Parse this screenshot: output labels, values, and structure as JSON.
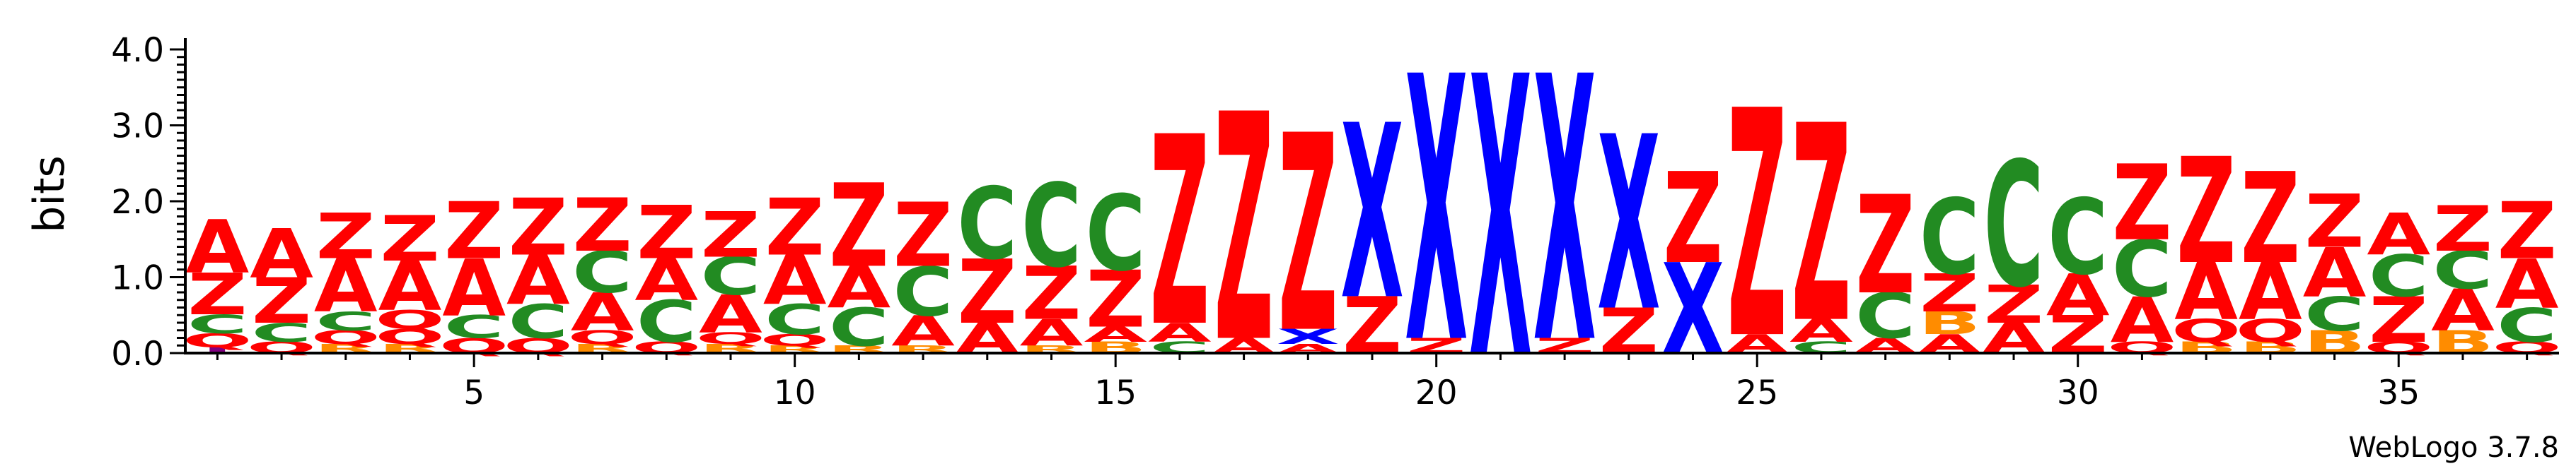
{
  "chart_data": {
    "type": "sequence-logo",
    "ylabel": "bits",
    "ylim": [
      0,
      4.0
    ],
    "yticks": [
      "0.0",
      "1.0",
      "2.0",
      "3.0",
      "4.0"
    ],
    "xlim": [
      0.5,
      37.5
    ],
    "xticks": [
      5,
      10,
      15,
      20,
      25,
      30,
      35
    ],
    "footer": "WebLogo 3.7.8",
    "colors": {
      "Z": "#ff0000",
      "A": "#ff0000",
      "C": "#228b22",
      "X": "#0000ff",
      "Q": "#ff0000",
      "B": "#ff8c00",
      "R": "#ff8c00",
      "I": "#800080"
    },
    "positions": [
      {
        "pos": 1,
        "stack": [
          [
            "I",
            0.08
          ],
          [
            "Q",
            0.18
          ],
          [
            "C",
            0.25
          ],
          [
            "Z",
            0.55
          ],
          [
            "A",
            0.7
          ]
        ]
      },
      {
        "pos": 2,
        "stack": [
          [
            "Q",
            0.15
          ],
          [
            "C",
            0.25
          ],
          [
            "Z",
            0.6
          ],
          [
            "A",
            0.65
          ]
        ]
      },
      {
        "pos": 3,
        "stack": [
          [
            "R",
            0.12
          ],
          [
            "Q",
            0.18
          ],
          [
            "C",
            0.25
          ],
          [
            "A",
            0.7
          ],
          [
            "Z",
            0.6
          ]
        ]
      },
      {
        "pos": 4,
        "stack": [
          [
            "R",
            0.12
          ],
          [
            "Q",
            0.2
          ],
          [
            "Q",
            0.25
          ],
          [
            "A",
            0.65
          ],
          [
            "Z",
            0.6
          ]
        ]
      },
      {
        "pos": 5,
        "stack": [
          [
            "Q",
            0.2
          ],
          [
            "C",
            0.3
          ],
          [
            "A",
            0.75
          ],
          [
            "Z",
            0.75
          ]
        ]
      },
      {
        "pos": 6,
        "stack": [
          [
            "Q",
            0.2
          ],
          [
            "C",
            0.45
          ],
          [
            "A",
            0.65
          ],
          [
            "Z",
            0.75
          ]
        ]
      },
      {
        "pos": 7,
        "stack": [
          [
            "R",
            0.12
          ],
          [
            "Q",
            0.18
          ],
          [
            "A",
            0.5
          ],
          [
            "C",
            0.55
          ],
          [
            "Z",
            0.7
          ]
        ]
      },
      {
        "pos": 8,
        "stack": [
          [
            "Q",
            0.15
          ],
          [
            "C",
            0.55
          ],
          [
            "A",
            0.55
          ],
          [
            "Z",
            0.7
          ]
        ]
      },
      {
        "pos": 9,
        "stack": [
          [
            "R",
            0.12
          ],
          [
            "Q",
            0.15
          ],
          [
            "A",
            0.5
          ],
          [
            "C",
            0.5
          ],
          [
            "Z",
            0.6
          ]
        ]
      },
      {
        "pos": 10,
        "stack": [
          [
            "R",
            0.1
          ],
          [
            "Q",
            0.15
          ],
          [
            "C",
            0.4
          ],
          [
            "A",
            0.65
          ],
          [
            "Z",
            0.75
          ]
        ]
      },
      {
        "pos": 11,
        "stack": [
          [
            "R",
            0.1
          ],
          [
            "C",
            0.5
          ],
          [
            "A",
            0.55
          ],
          [
            "Z",
            1.1
          ]
        ]
      },
      {
        "pos": 12,
        "stack": [
          [
            "R",
            0.1
          ],
          [
            "A",
            0.4
          ],
          [
            "C",
            0.65
          ],
          [
            "Z",
            0.85
          ]
        ]
      },
      {
        "pos": 13,
        "stack": [
          [
            "A",
            0.4
          ],
          [
            "Z",
            0.85
          ],
          [
            "C",
            0.95
          ]
        ]
      },
      {
        "pos": 14,
        "stack": [
          [
            "R",
            0.1
          ],
          [
            "A",
            0.35
          ],
          [
            "Z",
            0.7
          ],
          [
            "C",
            1.1
          ]
        ]
      },
      {
        "pos": 15,
        "stack": [
          [
            "B",
            0.15
          ],
          [
            "A",
            0.2
          ],
          [
            "Z",
            0.75
          ],
          [
            "C",
            1.0
          ]
        ]
      },
      {
        "pos": 16,
        "stack": [
          [
            "C",
            0.15
          ],
          [
            "A",
            0.25
          ],
          [
            "Z",
            2.5
          ]
        ]
      },
      {
        "pos": 17,
        "stack": [
          [
            "A",
            0.2
          ],
          [
            "Z",
            3.0
          ]
        ]
      },
      {
        "pos": 18,
        "stack": [
          [
            "A",
            0.12
          ],
          [
            "X",
            0.2
          ],
          [
            "Z",
            2.6
          ]
        ]
      },
      {
        "pos": 19,
        "stack": [
          [
            "Z",
            0.75
          ],
          [
            "X",
            2.3
          ]
        ]
      },
      {
        "pos": 20,
        "stack": [
          [
            "Z",
            0.2
          ],
          [
            "X",
            3.5
          ]
        ]
      },
      {
        "pos": 21,
        "stack": [
          [
            "X",
            3.7
          ]
        ]
      },
      {
        "pos": 22,
        "stack": [
          [
            "Z",
            0.2
          ],
          [
            "X",
            3.5
          ]
        ]
      },
      {
        "pos": 23,
        "stack": [
          [
            "Z",
            0.6
          ],
          [
            "X",
            2.3
          ]
        ]
      },
      {
        "pos": 24,
        "stack": [
          [
            "X",
            1.2
          ],
          [
            "Z",
            1.2
          ]
        ]
      },
      {
        "pos": 25,
        "stack": [
          [
            "A",
            0.25
          ],
          [
            "Z",
            3.0
          ]
        ]
      },
      {
        "pos": 26,
        "stack": [
          [
            "C",
            0.15
          ],
          [
            "A",
            0.3
          ],
          [
            "Z",
            2.6
          ]
        ]
      },
      {
        "pos": 27,
        "stack": [
          [
            "A",
            0.2
          ],
          [
            "C",
            0.6
          ],
          [
            "Z",
            1.3
          ]
        ]
      },
      {
        "pos": 28,
        "stack": [
          [
            "A",
            0.25
          ],
          [
            "B",
            0.3
          ],
          [
            "Z",
            0.5
          ],
          [
            "C",
            1.0
          ]
        ]
      },
      {
        "pos": 29,
        "stack": [
          [
            "A",
            0.4
          ],
          [
            "Z",
            0.5
          ],
          [
            "C",
            1.65
          ]
        ]
      },
      {
        "pos": 30,
        "stack": [
          [
            "Z",
            0.5
          ],
          [
            "A",
            0.55
          ],
          [
            "C",
            1.0
          ]
        ]
      },
      {
        "pos": 31,
        "stack": [
          [
            "Q",
            0.15
          ],
          [
            "A",
            0.6
          ],
          [
            "C",
            0.75
          ],
          [
            "Z",
            1.0
          ]
        ]
      },
      {
        "pos": 32,
        "stack": [
          [
            "B",
            0.15
          ],
          [
            "Q",
            0.3
          ],
          [
            "A",
            0.75
          ],
          [
            "Z",
            1.4
          ]
        ]
      },
      {
        "pos": 33,
        "stack": [
          [
            "B",
            0.15
          ],
          [
            "Q",
            0.3
          ],
          [
            "A",
            0.75
          ],
          [
            "Z",
            1.2
          ]
        ]
      },
      {
        "pos": 34,
        "stack": [
          [
            "B",
            0.3
          ],
          [
            "C",
            0.45
          ],
          [
            "A",
            0.65
          ],
          [
            "Z",
            0.7
          ]
        ]
      },
      {
        "pos": 35,
        "stack": [
          [
            "Q",
            0.15
          ],
          [
            "Z",
            0.6
          ],
          [
            "C",
            0.55
          ],
          [
            "A",
            0.55
          ]
        ]
      },
      {
        "pos": 36,
        "stack": [
          [
            "B",
            0.3
          ],
          [
            "A",
            0.55
          ],
          [
            "C",
            0.5
          ],
          [
            "Z",
            0.6
          ]
        ]
      },
      {
        "pos": 37,
        "stack": [
          [
            "Q",
            0.15
          ],
          [
            "C",
            0.45
          ],
          [
            "A",
            0.65
          ],
          [
            "Z",
            0.75
          ]
        ]
      }
    ]
  }
}
